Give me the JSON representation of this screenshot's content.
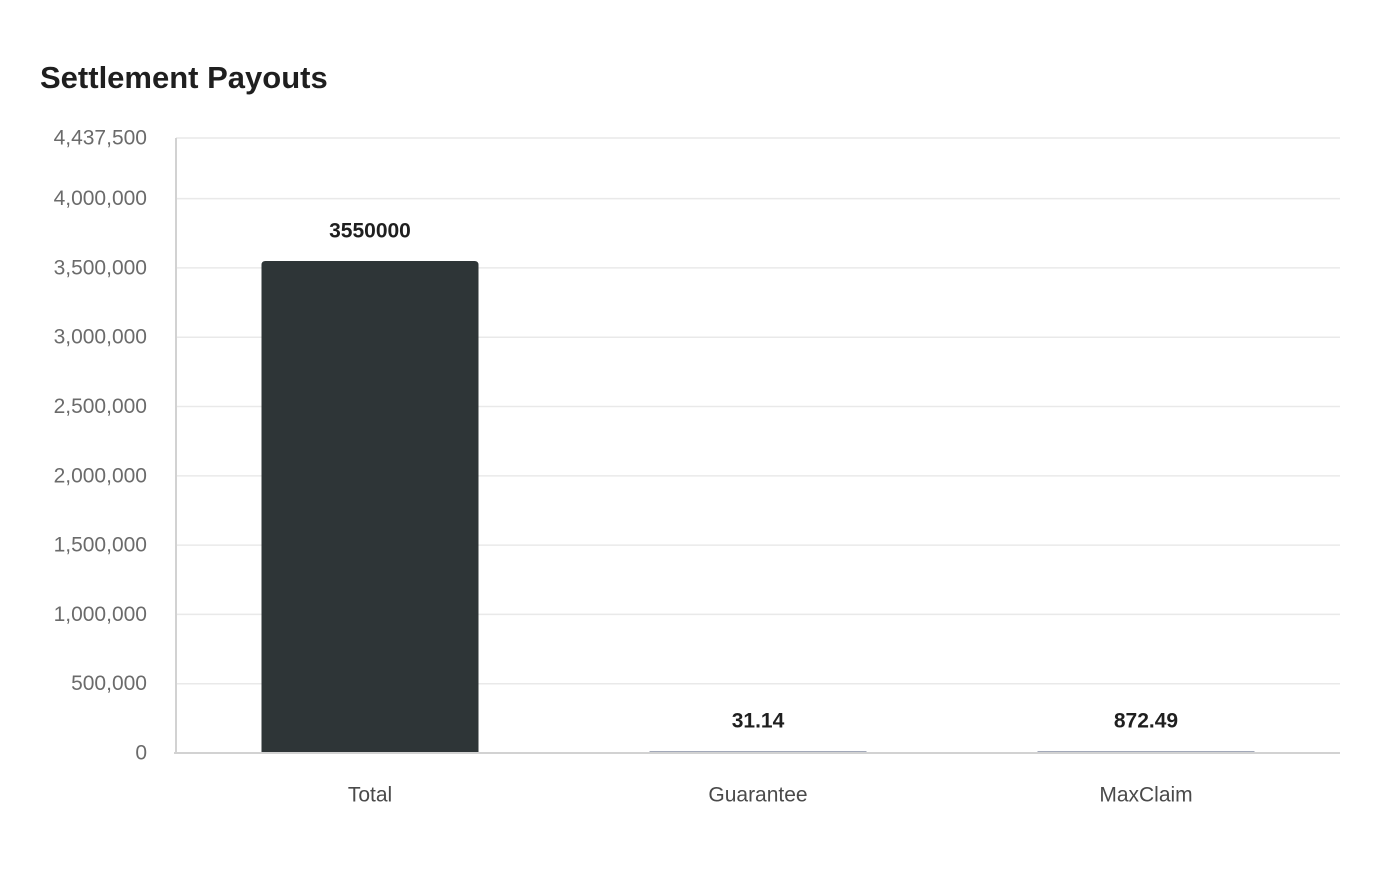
{
  "chart_data": {
    "type": "bar",
    "title": "Settlement Payouts",
    "xlabel": "",
    "ylabel": "",
    "categories": [
      "Total",
      "Guarantee",
      "MaxClaim"
    ],
    "values": [
      3550000,
      31.14,
      872.49
    ],
    "data_labels": [
      "3550000",
      "31.14",
      "872.49"
    ],
    "ylim": [
      0,
      4437500
    ],
    "yticks": [
      0,
      500000,
      1000000,
      1500000,
      2000000,
      2500000,
      3000000,
      3500000,
      4000000,
      4437500
    ],
    "ytick_labels": [
      "0",
      "500,000",
      "1,000,000",
      "1,500,000",
      "2,000,000",
      "2,500,000",
      "3,000,000",
      "3,500,000",
      "4,000,000",
      "4,437,500"
    ],
    "grid": true,
    "legend": "none",
    "colors": {
      "highlight_bar": "#2e3537",
      "muted_bar": "#a3a9b9"
    }
  }
}
